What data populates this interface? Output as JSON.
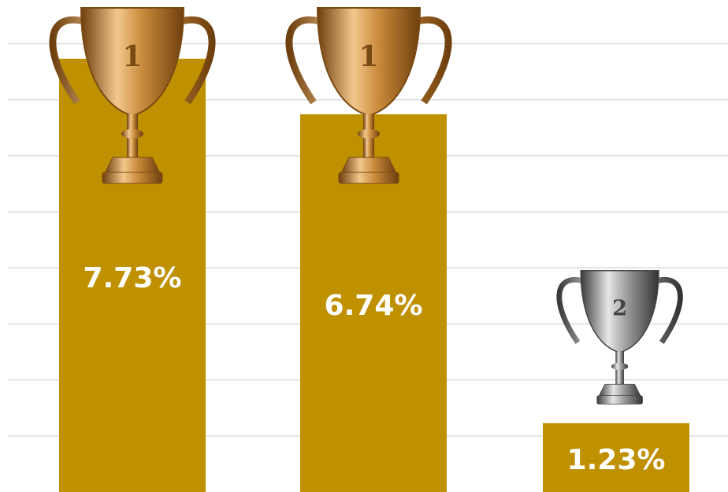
{
  "chart_data": {
    "type": "bar",
    "values": [
      7.73,
      6.74,
      1.23
    ],
    "value_labels": [
      "7.73%",
      "6.74%",
      "1.23%"
    ],
    "ranks": [
      1,
      1,
      2
    ],
    "color": "#bf9000",
    "ylim": [
      0,
      8.78
    ],
    "yticks": [
      1,
      2,
      3,
      4,
      5,
      6,
      7,
      8
    ],
    "grid": true
  }
}
